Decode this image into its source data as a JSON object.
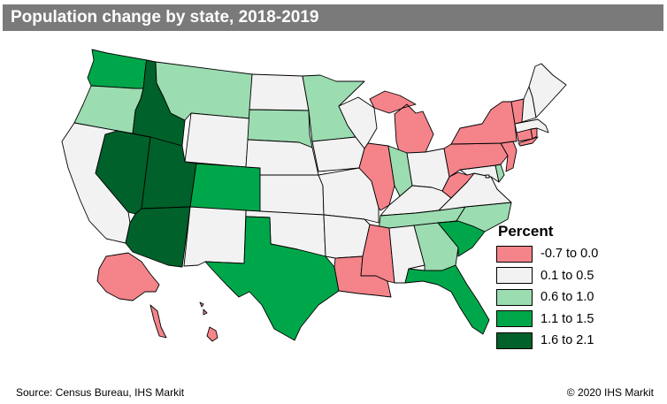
{
  "title": "Population change by state, 2018-2019",
  "legend": {
    "title": "Percent",
    "classes": [
      {
        "label": "-0.7 to 0.0",
        "color": "#f4848a"
      },
      {
        "label": "0.1 to 0.5",
        "color": "#f2f2f2"
      },
      {
        "label": "0.6 to 1.0",
        "color": "#9bdcb1"
      },
      {
        "label": "1.1 to 1.5",
        "color": "#00a74a"
      },
      {
        "label": "1.6 to 2.1",
        "color": "#00612a"
      }
    ]
  },
  "state_classes": {
    "WA": 3,
    "OR": 2,
    "CA": 1,
    "NV": 4,
    "ID": 4,
    "MT": 2,
    "WY": 1,
    "UT": 4,
    "AZ": 4,
    "CO": 3,
    "NM": 1,
    "ND": 1,
    "SD": 2,
    "NE": 1,
    "KS": 1,
    "OK": 1,
    "TX": 3,
    "MN": 2,
    "IA": 1,
    "MO": 1,
    "AR": 1,
    "LA": 0,
    "WI": 1,
    "IL": 0,
    "MI": 0,
    "IN": 2,
    "OH": 1,
    "KY": 1,
    "TN": 2,
    "MS": 0,
    "AL": 1,
    "GA": 2,
    "FL": 3,
    "SC": 3,
    "NC": 2,
    "VA": 1,
    "WV": 0,
    "PA": 0,
    "NY": 0,
    "VT": 0,
    "NH": 1,
    "ME": 1,
    "MA": 1,
    "RI": 0,
    "CT": 0,
    "NJ": 0,
    "DE": 2,
    "MD": 1,
    "DC": 1,
    "AK": 0,
    "HI": 0
  },
  "footer": {
    "source": "Source: Census Bureau, IHS Markit",
    "copyright": "© 2020 IHS Markit"
  }
}
